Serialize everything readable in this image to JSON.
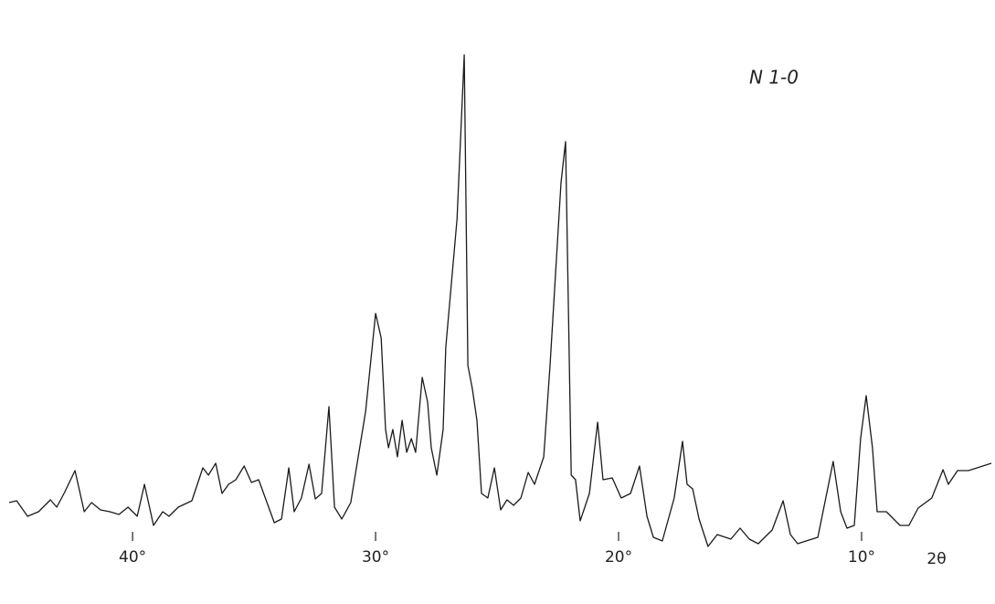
{
  "chart_data": {
    "type": "line",
    "title": "N 1-0",
    "x_label": "2θ",
    "color": "#1a1a1a",
    "xlim": [
      45.08,
      4.66
    ],
    "ylim": [
      0,
      600
    ],
    "xticks": [
      {
        "value": 40,
        "label": "40°"
      },
      {
        "value": 30,
        "label": "30°"
      },
      {
        "value": 20,
        "label": "20°"
      },
      {
        "value": 10,
        "label": "10°"
      }
    ],
    "x": [
      45.08,
      44.77,
      44.32,
      43.87,
      43.38,
      43.12,
      42.82,
      42.37,
      41.99,
      41.69,
      41.32,
      40.94,
      40.56,
      40.19,
      39.81,
      39.51,
      39.14,
      38.76,
      38.5,
      38.12,
      37.56,
      37.11,
      36.88,
      36.58,
      36.32,
      36.05,
      35.75,
      35.41,
      35.11,
      34.81,
      34.17,
      33.87,
      33.57,
      33.35,
      33.05,
      32.74,
      32.48,
      32.22,
      31.92,
      31.69,
      31.39,
      31.02,
      30.41,
      30.0,
      29.77,
      29.59,
      29.47,
      29.29,
      29.1,
      28.91,
      28.72,
      28.53,
      28.35,
      28.08,
      27.86,
      27.71,
      27.48,
      27.22,
      27.11,
      26.65,
      26.35,
      26.2,
      26.02,
      25.83,
      25.64,
      25.38,
      25.11,
      24.85,
      24.59,
      24.32,
      24.02,
      23.72,
      23.46,
      23.08,
      22.82,
      22.37,
      22.18,
      21.95,
      21.77,
      21.58,
      21.2,
      20.86,
      20.64,
      20.26,
      19.89,
      19.51,
      19.14,
      18.83,
      18.57,
      18.2,
      17.71,
      17.37,
      17.18,
      16.95,
      16.69,
      16.32,
      15.94,
      15.38,
      15.0,
      14.62,
      14.25,
      13.68,
      13.23,
      12.93,
      12.63,
      11.8,
      11.17,
      10.86,
      10.6,
      10.3,
      10.04,
      9.81,
      9.55,
      9.36,
      8.98,
      8.42,
      8.05,
      7.67,
      7.11,
      6.65,
      6.43,
      6.05,
      5.6,
      4.66
    ],
    "values": [
      50,
      52,
      35,
      40,
      53,
      45,
      60,
      85,
      40,
      50,
      42,
      40,
      37,
      45,
      35,
      70,
      25,
      40,
      35,
      45,
      52,
      88,
      80,
      93,
      60,
      70,
      75,
      90,
      72,
      75,
      28,
      32,
      88,
      40,
      55,
      92,
      54,
      60,
      155,
      45,
      32,
      50,
      150,
      257,
      230,
      130,
      110,
      130,
      100,
      140,
      105,
      120,
      105,
      187,
      160,
      110,
      80,
      130,
      220,
      360,
      540,
      200,
      175,
      140,
      60,
      55,
      88,
      42,
      53,
      47,
      55,
      83,
      70,
      100,
      200,
      400,
      445,
      80,
      75,
      30,
      60,
      138,
      75,
      77,
      55,
      60,
      90,
      35,
      12,
      8,
      55,
      117,
      70,
      65,
      32,
      2,
      15,
      10,
      22,
      10,
      5,
      20,
      52,
      15,
      5,
      12,
      95,
      40,
      22,
      25,
      120,
      167,
      110,
      40,
      40,
      25,
      25,
      44,
      55,
      86,
      70,
      85,
      85,
      93
    ]
  }
}
